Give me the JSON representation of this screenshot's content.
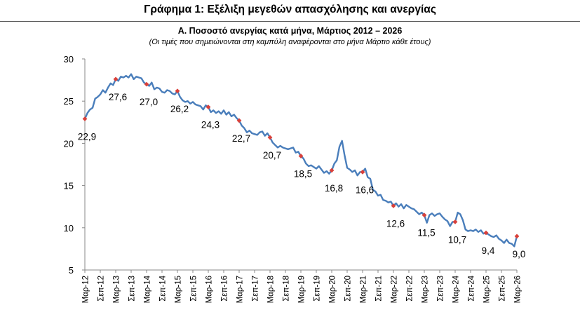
{
  "figure_title": "Γράφημα 1: Εξέλιξη μεγεθών απασχόλησης και ανεργίας",
  "chart_title": "Α. Ποσοστό ανεργίας κατά μήνα, Μάρτιος 2012 – 2026",
  "chart_subtitle": "(Οι τιμές που σημειώνονται στη καμπύλη αναφέρονται στο μήνα Μάρτιο κάθε έτους)",
  "colors": {
    "line": "#4A7EBB",
    "marker": "#D9403A",
    "axis": "#888888"
  },
  "chart_data": {
    "type": "line",
    "title": "Α. Ποσοστό ανεργίας κατά μήνα, Μάρτιος 2012 – 2026",
    "subtitle": "(Οι τιμές που σημειώνονται στη καμπύλη αναφέρονται στο μήνα Μάρτιο κάθε έτους)",
    "xlabel": "",
    "ylabel": "",
    "ylim": [
      5,
      30
    ],
    "yticks": [
      5,
      10,
      15,
      20,
      25,
      30
    ],
    "grid": false,
    "legend": "none",
    "x_start": "Μαρ-12",
    "x_end": "Μαρ-26",
    "x_tick_labels": [
      "Μαρ-12",
      "Σεπ-12",
      "Μαρ-13",
      "Σεπ-13",
      "Μαρ-14",
      "Σεπ-14",
      "Μαρ-15",
      "Σεπ-15",
      "Μαρ-16",
      "Σεπ-16",
      "Μαρ-17",
      "Σεπ-17",
      "Μαρ-18",
      "Σεπ-18",
      "Μαρ-19",
      "Σεπ-19",
      "Μαρ-20",
      "Σεπ-20",
      "Μαρ-21",
      "Σεπ-21",
      "Μαρ-22",
      "Σεπ-22",
      "Μαρ-23",
      "Σεπ-23",
      "Μαρ-24",
      "Σεπ-24",
      "Μαρ-25",
      "Σεπ-25",
      "Μαρ-26"
    ],
    "series": [
      {
        "values": [
          22.9,
          23.6,
          24.0,
          24.2,
          25.3,
          25.5,
          25.8,
          26.3,
          26.0,
          26.6,
          27.1,
          26.9,
          27.6,
          27.4,
          27.9,
          27.8,
          28.0,
          27.8,
          28.2,
          27.6,
          27.9,
          27.8,
          27.7,
          27.2,
          27.0,
          26.8,
          27.2,
          26.4,
          26.6,
          26.5,
          26.1,
          26.0,
          26.3,
          26.2,
          25.9,
          25.8,
          26.2,
          25.5,
          25.1,
          24.9,
          25.0,
          24.7,
          24.9,
          24.6,
          24.5,
          24.4,
          24.0,
          24.5,
          24.3,
          23.7,
          23.9,
          23.6,
          23.8,
          23.5,
          23.9,
          23.4,
          23.7,
          23.2,
          23.4,
          23.0,
          22.7,
          22.1,
          21.8,
          21.3,
          21.5,
          21.2,
          21.1,
          21.0,
          21.3,
          21.4,
          20.9,
          21.2,
          20.7,
          20.1,
          19.8,
          19.5,
          19.7,
          19.5,
          19.4,
          19.3,
          19.4,
          19.5,
          18.9,
          19.0,
          18.5,
          18.2,
          17.6,
          17.3,
          17.4,
          17.2,
          17.0,
          17.3,
          16.9,
          16.5,
          16.7,
          16.4,
          16.8,
          17.6,
          18.0,
          19.6,
          20.3,
          18.6,
          17.1,
          16.9,
          16.6,
          16.8,
          16.2,
          16.6,
          16.6,
          17.0,
          16.0,
          15.8,
          14.5,
          14.3,
          13.8,
          13.9,
          13.3,
          13.2,
          13.0,
          13.1,
          12.6,
          12.9,
          12.5,
          12.8,
          12.3,
          12.7,
          12.5,
          12.3,
          12.2,
          11.9,
          11.6,
          11.8,
          11.5,
          10.6,
          11.5,
          11.7,
          11.4,
          11.6,
          11.7,
          11.3,
          11.0,
          10.8,
          10.2,
          10.7,
          10.7,
          11.8,
          11.6,
          10.9,
          9.8,
          9.6,
          9.7,
          9.6,
          9.8,
          9.5,
          9.7,
          9.3,
          9.4,
          9.2,
          9.0,
          8.9,
          9.1,
          8.7,
          8.5,
          8.2,
          8.6,
          8.2,
          8.1,
          7.8,
          9.0
        ]
      }
    ],
    "march_values": [
      22.9,
      27.6,
      27.0,
      26.2,
      24.3,
      22.7,
      20.7,
      18.5,
      16.8,
      16.6,
      12.6,
      11.5,
      10.7,
      9.4,
      9.0
    ],
    "march_labels": [
      "22,9",
      "27,6",
      "27,0",
      "26,2",
      "24,3",
      "22,7",
      "20,7",
      "18,5",
      "16,8",
      "16,6",
      "12,6",
      "11,5",
      "10,7",
      "9,4",
      "9,0"
    ],
    "march_label_placement": [
      "below",
      "below",
      "below",
      "below",
      "below",
      "below",
      "below",
      "below",
      "below",
      "below",
      "below",
      "below",
      "below",
      "below",
      "below"
    ]
  }
}
